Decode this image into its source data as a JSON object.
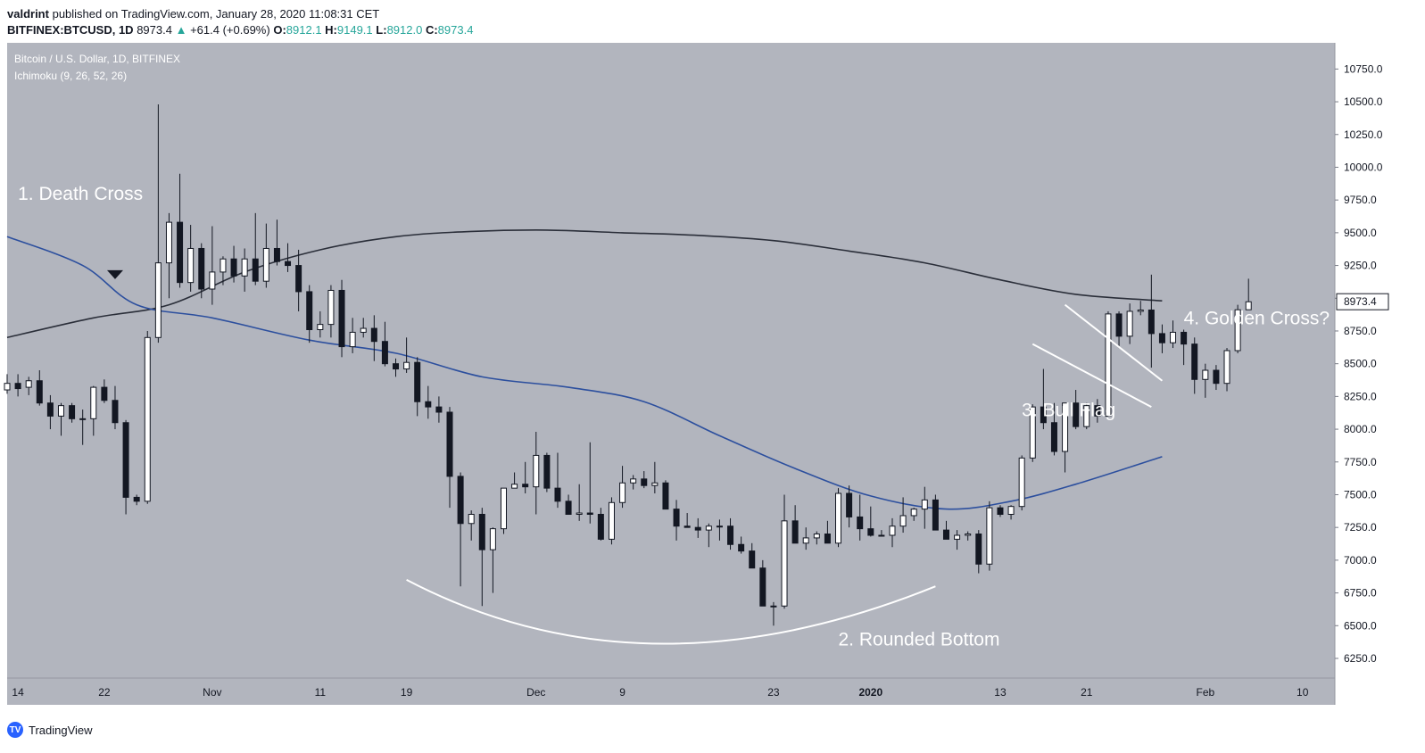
{
  "header": {
    "author": "valdrint",
    "published_text": "published on TradingView.com, January 28, 2020 11:08:31 CET",
    "symbol": "BITFINEX:BTCUSD, 1D",
    "last_price": "8973.4",
    "change_arrow": "▲",
    "change": "+61.4 (+0.69%)",
    "o_label": "O:",
    "o_value": "8912.1",
    "h_label": "H:",
    "h_value": "9149.1",
    "l_label": "L:",
    "l_value": "8912.0",
    "c_label": "C:",
    "c_value": "8973.4"
  },
  "footer": {
    "logo_text": "TradingView",
    "logo_icon": "tradingview-logo-icon"
  },
  "colors": {
    "chart_bg": "#b2b5be",
    "axis_bg": "#ffffff",
    "bull_body": "#ffffff",
    "bear_body": "#131722",
    "wick": "#131722",
    "ma_dark": "#2a2e39",
    "ma_blue": "#2c4f9e",
    "annotation": "#ffffff",
    "price_label_border": "#131722"
  },
  "chart_data": {
    "type": "candlestick",
    "title": "Bitcoin / U.S. Dollar, 1D, BITFINEX",
    "subtitle": "Ichimoku (9, 26, 52, 26)",
    "ylim": [
      6100,
      10950
    ],
    "y_ticks": [
      6250,
      6500,
      6750,
      7000,
      7250,
      7500,
      7750,
      8000,
      8250,
      8500,
      8750,
      9000,
      9250,
      9500,
      9750,
      10000,
      10250,
      10500,
      10750
    ],
    "y_tick_labels": [
      "6250.0",
      "6500.0",
      "6750.0",
      "7000.0",
      "7250.0",
      "7500.0",
      "7750.0",
      "8000.0",
      "8250.0",
      "8500.0",
      "8750.0",
      "9000.0",
      "9250.0",
      "9500.0",
      "9750.0",
      "10000.0",
      "10250.0",
      "10500.0",
      "10750.0"
    ],
    "x_start_date": "2019-10-13",
    "x_end_date": "2020-02-13",
    "x_ticks": [
      {
        "date": "2019-10-14",
        "label": "14"
      },
      {
        "date": "2019-10-22",
        "label": "22"
      },
      {
        "date": "2019-11-01",
        "label": "Nov"
      },
      {
        "date": "2019-11-11",
        "label": "11"
      },
      {
        "date": "2019-11-19",
        "label": "19"
      },
      {
        "date": "2019-12-01",
        "label": "Dec"
      },
      {
        "date": "2019-12-09",
        "label": "9"
      },
      {
        "date": "2019-12-23",
        "label": "23"
      },
      {
        "date": "2020-01-01",
        "label": "2020"
      },
      {
        "date": "2020-01-13",
        "label": "13"
      },
      {
        "date": "2020-01-21",
        "label": "21"
      },
      {
        "date": "2020-02-01",
        "label": "Feb"
      },
      {
        "date": "2020-02-10",
        "label": "10"
      }
    ],
    "last_price_label": "8973.4",
    "last_price": 8973.4,
    "candles_first_date": "2019-10-13",
    "candles_ohlc": [
      [
        8300,
        8420,
        8270,
        8350
      ],
      [
        8350,
        8420,
        8250,
        8310
      ],
      [
        8320,
        8400,
        8260,
        8370
      ],
      [
        8370,
        8450,
        8180,
        8200
      ],
      [
        8200,
        8260,
        8000,
        8100
      ],
      [
        8100,
        8200,
        7950,
        8180
      ],
      [
        8180,
        8200,
        8050,
        8080
      ],
      [
        8080,
        8150,
        7880,
        8080
      ],
      [
        8080,
        8330,
        7950,
        8320
      ],
      [
        8320,
        8380,
        8200,
        8220
      ],
      [
        8220,
        8330,
        8000,
        8050
      ],
      [
        8050,
        8070,
        7350,
        7480
      ],
      [
        7480,
        7500,
        7420,
        7450
      ],
      [
        7450,
        8750,
        7430,
        8700
      ],
      [
        8700,
        10480,
        8660,
        9270
      ],
      [
        9270,
        9650,
        9000,
        9580
      ],
      [
        9580,
        9950,
        9080,
        9120
      ],
      [
        9120,
        9560,
        9050,
        9380
      ],
      [
        9380,
        9420,
        9000,
        9070
      ],
      [
        9070,
        9550,
        8950,
        9200
      ],
      [
        9200,
        9320,
        9100,
        9300
      ],
      [
        9300,
        9400,
        9120,
        9170
      ],
      [
        9170,
        9380,
        9050,
        9300
      ],
      [
        9300,
        9650,
        9100,
        9130
      ],
      [
        9130,
        9570,
        9080,
        9380
      ],
      [
        9380,
        9600,
        9250,
        9280
      ],
      [
        9280,
        9420,
        9200,
        9250
      ],
      [
        9250,
        9370,
        8900,
        9050
      ],
      [
        9050,
        9100,
        8660,
        8760
      ],
      [
        8760,
        8900,
        8700,
        8800
      ],
      [
        8800,
        9100,
        8700,
        9060
      ],
      [
        9060,
        9140,
        8550,
        8630
      ],
      [
        8630,
        8850,
        8580,
        8740
      ],
      [
        8740,
        8850,
        8700,
        8770
      ],
      [
        8770,
        8870,
        8520,
        8670
      ],
      [
        8670,
        8820,
        8480,
        8500
      ],
      [
        8500,
        8540,
        8400,
        8460
      ],
      [
        8460,
        8700,
        8430,
        8510
      ],
      [
        8510,
        8550,
        8100,
        8210
      ],
      [
        8210,
        8330,
        8080,
        8170
      ],
      [
        8170,
        8250,
        8050,
        8130
      ],
      [
        8130,
        8170,
        7400,
        7640
      ],
      [
        7640,
        7670,
        6800,
        7280
      ],
      [
        7280,
        7380,
        7150,
        7350
      ],
      [
        7350,
        7400,
        6650,
        7080
      ],
      [
        7080,
        7250,
        6750,
        7240
      ],
      [
        7240,
        7450,
        7200,
        7550
      ],
      [
        7550,
        7670,
        7550,
        7580
      ],
      [
        7580,
        7750,
        7510,
        7560
      ],
      [
        7560,
        7980,
        7350,
        7800
      ],
      [
        7800,
        7820,
        7520,
        7550
      ],
      [
        7550,
        7820,
        7400,
        7450
      ],
      [
        7450,
        7500,
        7350,
        7350
      ],
      [
        7350,
        7580,
        7300,
        7360
      ],
      [
        7360,
        7900,
        7280,
        7350
      ],
      [
        7350,
        7400,
        7150,
        7160
      ],
      [
        7160,
        7480,
        7120,
        7440
      ],
      [
        7440,
        7720,
        7400,
        7590
      ],
      [
        7590,
        7650,
        7540,
        7620
      ],
      [
        7620,
        7680,
        7550,
        7570
      ],
      [
        7570,
        7750,
        7510,
        7590
      ],
      [
        7590,
        7610,
        7400,
        7390
      ],
      [
        7390,
        7460,
        7150,
        7260
      ],
      [
        7260,
        7360,
        7250,
        7250
      ],
      [
        7250,
        7320,
        7170,
        7230
      ],
      [
        7230,
        7280,
        7100,
        7260
      ],
      [
        7260,
        7310,
        7150,
        7260
      ],
      [
        7260,
        7320,
        7080,
        7120
      ],
      [
        7120,
        7180,
        7050,
        7070
      ],
      [
        7070,
        7130,
        6950,
        6940
      ],
      [
        6940,
        7000,
        6850,
        6650
      ],
      [
        6650,
        6680,
        6500,
        6650
      ],
      [
        6650,
        7500,
        6630,
        7300
      ],
      [
        7300,
        7420,
        7250,
        7130
      ],
      [
        7130,
        7250,
        7080,
        7170
      ],
      [
        7170,
        7220,
        7120,
        7200
      ],
      [
        7200,
        7300,
        7150,
        7130
      ],
      [
        7130,
        7550,
        7100,
        7510
      ],
      [
        7510,
        7570,
        7250,
        7330
      ],
      [
        7330,
        7500,
        7150,
        7240
      ],
      [
        7240,
        7410,
        7180,
        7190
      ],
      [
        7190,
        7230,
        7180,
        7190
      ],
      [
        7190,
        7320,
        7100,
        7260
      ],
      [
        7260,
        7480,
        7210,
        7340
      ],
      [
        7340,
        7400,
        7300,
        7390
      ],
      [
        7390,
        7560,
        7240,
        7460
      ],
      [
        7460,
        7500,
        7230,
        7230
      ],
      [
        7230,
        7300,
        7200,
        7160
      ],
      [
        7160,
        7230,
        7080,
        7190
      ],
      [
        7190,
        7220,
        7150,
        7200
      ],
      [
        7200,
        7230,
        6900,
        6970
      ],
      [
        6970,
        7450,
        6920,
        7400
      ],
      [
        7400,
        7420,
        7330,
        7350
      ],
      [
        7350,
        7420,
        7310,
        7410
      ],
      [
        7410,
        7800,
        7380,
        7780
      ],
      [
        7780,
        8190,
        7750,
        8170
      ],
      [
        8170,
        8460,
        8000,
        8050
      ],
      [
        8050,
        8200,
        7800,
        7830
      ],
      [
        7830,
        8200,
        7670,
        8200
      ],
      [
        8200,
        8300,
        8000,
        8020
      ],
      [
        8020,
        8200,
        8000,
        8180
      ],
      [
        8180,
        8230,
        8050,
        8100
      ],
      [
        8100,
        8900,
        8100,
        8880
      ],
      [
        8880,
        8900,
        8620,
        8710
      ],
      [
        8710,
        8960,
        8650,
        8900
      ],
      [
        8900,
        8980,
        8870,
        8910
      ],
      [
        8910,
        9180,
        8470,
        8730
      ],
      [
        8730,
        8800,
        8580,
        8660
      ],
      [
        8660,
        8830,
        8620,
        8740
      ],
      [
        8740,
        8760,
        8490,
        8650
      ],
      [
        8650,
        8700,
        8270,
        8380
      ],
      [
        8380,
        8500,
        8240,
        8450
      ],
      [
        8450,
        8490,
        8300,
        8350
      ],
      [
        8350,
        8620,
        8290,
        8600
      ],
      [
        8600,
        8950,
        8580,
        8912
      ],
      [
        8912,
        9149,
        8912,
        8973
      ]
    ],
    "ma_dark_points": [
      [
        "2019-10-13",
        8700
      ],
      [
        "2019-10-21",
        8850
      ],
      [
        "2019-10-28",
        8950
      ],
      [
        "2019-11-04",
        9200
      ],
      [
        "2019-11-11",
        9370
      ],
      [
        "2019-11-18",
        9470
      ],
      [
        "2019-11-25",
        9510
      ],
      [
        "2019-12-02",
        9520
      ],
      [
        "2019-12-09",
        9500
      ],
      [
        "2019-12-16",
        9480
      ],
      [
        "2019-12-23",
        9440
      ],
      [
        "2019-12-30",
        9360
      ],
      [
        "2020-01-06",
        9270
      ],
      [
        "2020-01-13",
        9140
      ],
      [
        "2020-01-20",
        9030
      ],
      [
        "2020-01-28",
        8980
      ]
    ],
    "ma_blue_points": [
      [
        "2019-10-13",
        9470
      ],
      [
        "2019-10-20",
        9250
      ],
      [
        "2019-10-25",
        8950
      ],
      [
        "2019-11-01",
        8850
      ],
      [
        "2019-11-10",
        8680
      ],
      [
        "2019-11-18",
        8580
      ],
      [
        "2019-11-26",
        8400
      ],
      [
        "2019-12-04",
        8320
      ],
      [
        "2019-12-11",
        8210
      ],
      [
        "2019-12-18",
        7950
      ],
      [
        "2019-12-25",
        7700
      ],
      [
        "2020-01-01",
        7490
      ],
      [
        "2020-01-08",
        7390
      ],
      [
        "2020-01-14",
        7450
      ],
      [
        "2020-01-20",
        7580
      ],
      [
        "2020-01-28",
        7790
      ]
    ],
    "annotations": [
      {
        "text": "1. Death Cross",
        "date": "2019-10-14",
        "price": 9750
      },
      {
        "text": "2. Rounded Bottom",
        "date": "2019-12-29",
        "price": 6350
      },
      {
        "text": "3. Bull Flag",
        "date": "2020-01-15",
        "price": 8100
      },
      {
        "text": "4. Golden Cross?",
        "date": "2020-01-30",
        "price": 8800
      }
    ],
    "death_cross_marker": {
      "date": "2019-10-23",
      "price": 9180
    },
    "rounded_bottom_curve": {
      "start": [
        "2019-11-19",
        6850
      ],
      "control": [
        "2019-12-11",
        5900
      ],
      "end": [
        "2020-01-07",
        6800
      ]
    },
    "bull_flag_lines": [
      {
        "from": [
          "2020-01-19",
          8950
        ],
        "to": [
          "2020-01-28",
          8370
        ]
      },
      {
        "from": [
          "2020-01-16",
          8650
        ],
        "to": [
          "2020-01-27",
          8170
        ]
      }
    ]
  }
}
